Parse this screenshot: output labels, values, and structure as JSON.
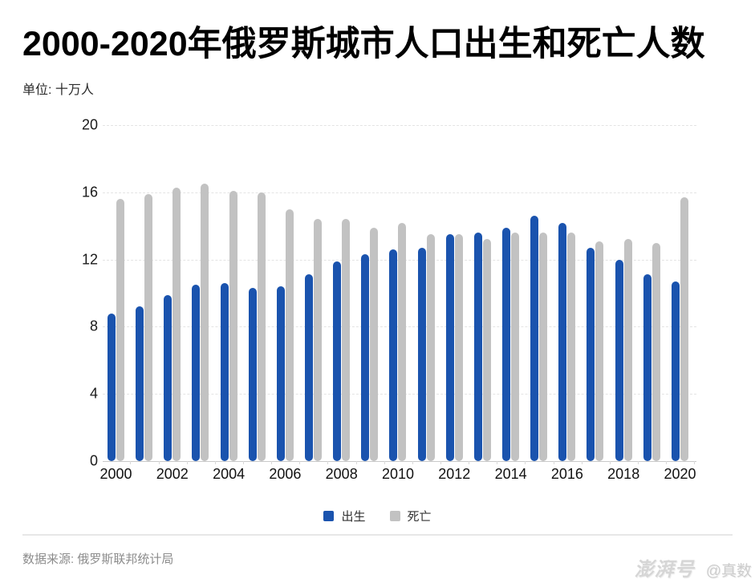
{
  "header": {
    "title": "2000-2020年俄罗斯城市人口出生和死亡人数",
    "unit_label": "单位: 十万人"
  },
  "chart_data": {
    "type": "bar",
    "title": "2000-2020年俄罗斯城市人口出生和死亡人数",
    "ylabel": "十万人",
    "xlabel": "",
    "categories": [
      "2000",
      "2001",
      "2002",
      "2003",
      "2004",
      "2005",
      "2006",
      "2007",
      "2008",
      "2009",
      "2010",
      "2011",
      "2012",
      "2013",
      "2014",
      "2015",
      "2016",
      "2017",
      "2018",
      "2019",
      "2020"
    ],
    "series": [
      {
        "name": "出生",
        "color": "#1A53AE",
        "values": [
          8.8,
          9.2,
          9.9,
          10.5,
          10.6,
          10.3,
          10.4,
          11.1,
          11.9,
          12.3,
          12.6,
          12.7,
          13.5,
          13.6,
          13.9,
          14.6,
          14.2,
          12.7,
          12.0,
          11.1,
          10.7
        ]
      },
      {
        "name": "死亡",
        "color": "#C2C2C2",
        "values": [
          15.6,
          15.9,
          16.3,
          16.5,
          16.1,
          16.0,
          15.0,
          14.4,
          14.4,
          13.9,
          14.2,
          13.5,
          13.5,
          13.2,
          13.6,
          13.6,
          13.6,
          13.1,
          13.2,
          13.0,
          15.7
        ]
      }
    ],
    "ylim": [
      0,
      20
    ],
    "y_ticks": [
      0,
      4,
      8,
      12,
      16,
      20
    ],
    "x_tick_labels": [
      "2000",
      "2002",
      "2004",
      "2006",
      "2008",
      "2010",
      "2012",
      "2014",
      "2016",
      "2018",
      "2020"
    ],
    "grid": "horizontal-dashed",
    "legend_position": "bottom"
  },
  "legend": {
    "items": [
      {
        "label": "出生",
        "color": "#1A53AE"
      },
      {
        "label": "死亡",
        "color": "#C2C2C2"
      }
    ]
  },
  "footer": {
    "source": "数据来源: 俄罗斯联邦统计局",
    "watermark_logo": "澎湃号",
    "watermark_account": "@真数"
  },
  "colors": {
    "birth_bar": "#1A53AE",
    "death_bar": "#C2C2C2",
    "gridline": "#E4E4E4",
    "axis_line": "#C9C9C9",
    "background": "#FFFFFF",
    "title_text": "#000000",
    "source_text": "#8C8C8C"
  }
}
